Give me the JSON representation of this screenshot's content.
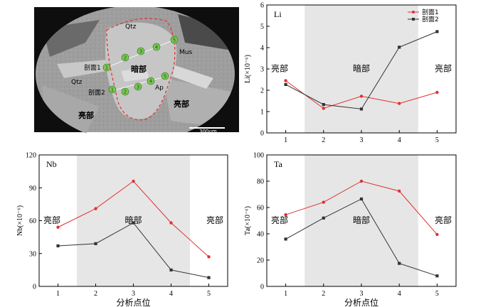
{
  "micrograph": {
    "labels": {
      "qtz_top": "Qtz",
      "qtz_left": "Qtz",
      "mus": "Mus",
      "ap": "Ap",
      "profile1": "剖面1",
      "profile2": "剖面2",
      "dark": "暗部",
      "bright_left": "亮部",
      "bright_right": "亮部"
    },
    "points_profile1": [
      "1",
      "2",
      "3",
      "4",
      "5"
    ],
    "points_profile2": [
      "1",
      "2",
      "3",
      "4",
      "5"
    ],
    "scale_bar": "300μm",
    "colors": {
      "boundary": "#e03030",
      "point_fill": "#7ac74f"
    }
  },
  "chart_data": [
    {
      "type": "line",
      "title": "Li",
      "xlabel": "",
      "ylabel": "Li(×10⁻⁶)",
      "x": [
        1,
        2,
        3,
        4,
        5
      ],
      "xlim": [
        0.5,
        5.5
      ],
      "ylim": [
        0,
        6
      ],
      "yticks": [
        0,
        1,
        2,
        3,
        4,
        5,
        6
      ],
      "shade": [
        1.5,
        4.5
      ],
      "zones": [
        "亮部",
        "暗部",
        "亮部"
      ],
      "legend": "top-right",
      "series": [
        {
          "name": "剖面1",
          "values": [
            2.45,
            1.15,
            1.72,
            1.38,
            1.9
          ],
          "color": "#e03030",
          "marker": "circle"
        },
        {
          "name": "剖面2",
          "values": [
            2.27,
            1.33,
            1.12,
            4.02,
            4.75
          ],
          "color": "#333333",
          "marker": "square"
        }
      ]
    },
    {
      "type": "line",
      "title": "Nb",
      "xlabel": "分析点位",
      "ylabel": "Nb(×10⁻⁶)",
      "x": [
        1,
        2,
        3,
        4,
        5
      ],
      "xlim": [
        0.5,
        5.5
      ],
      "ylim": [
        0,
        120
      ],
      "yticks": [
        0,
        30,
        60,
        90,
        120
      ],
      "shade": [
        1.5,
        4.5
      ],
      "zones": [
        "亮部",
        "暗部",
        "亮部"
      ],
      "series": [
        {
          "name": "",
          "values": [
            54,
            71,
            96,
            58,
            27
          ],
          "color": "#e03030",
          "marker": "circle"
        },
        {
          "name": "",
          "values": [
            37,
            39,
            58,
            15,
            8
          ],
          "color": "#333333",
          "marker": "square"
        }
      ]
    },
    {
      "type": "line",
      "title": "Ta",
      "xlabel": "分析点位",
      "ylabel": "Ta(×10⁻⁶)",
      "x": [
        1,
        2,
        3,
        4,
        5
      ],
      "xlim": [
        0.5,
        5.5
      ],
      "ylim": [
        0,
        100
      ],
      "yticks": [
        0,
        20,
        40,
        60,
        80,
        100
      ],
      "shade": [
        1.5,
        4.5
      ],
      "zones": [
        "亮部",
        "暗部",
        "亮部"
      ],
      "series": [
        {
          "name": "",
          "values": [
            54.5,
            64,
            80,
            72.5,
            39.5
          ],
          "color": "#e03030",
          "marker": "circle"
        },
        {
          "name": "",
          "values": [
            36,
            52,
            66.5,
            17.5,
            8
          ],
          "color": "#333333",
          "marker": "square"
        }
      ]
    }
  ]
}
